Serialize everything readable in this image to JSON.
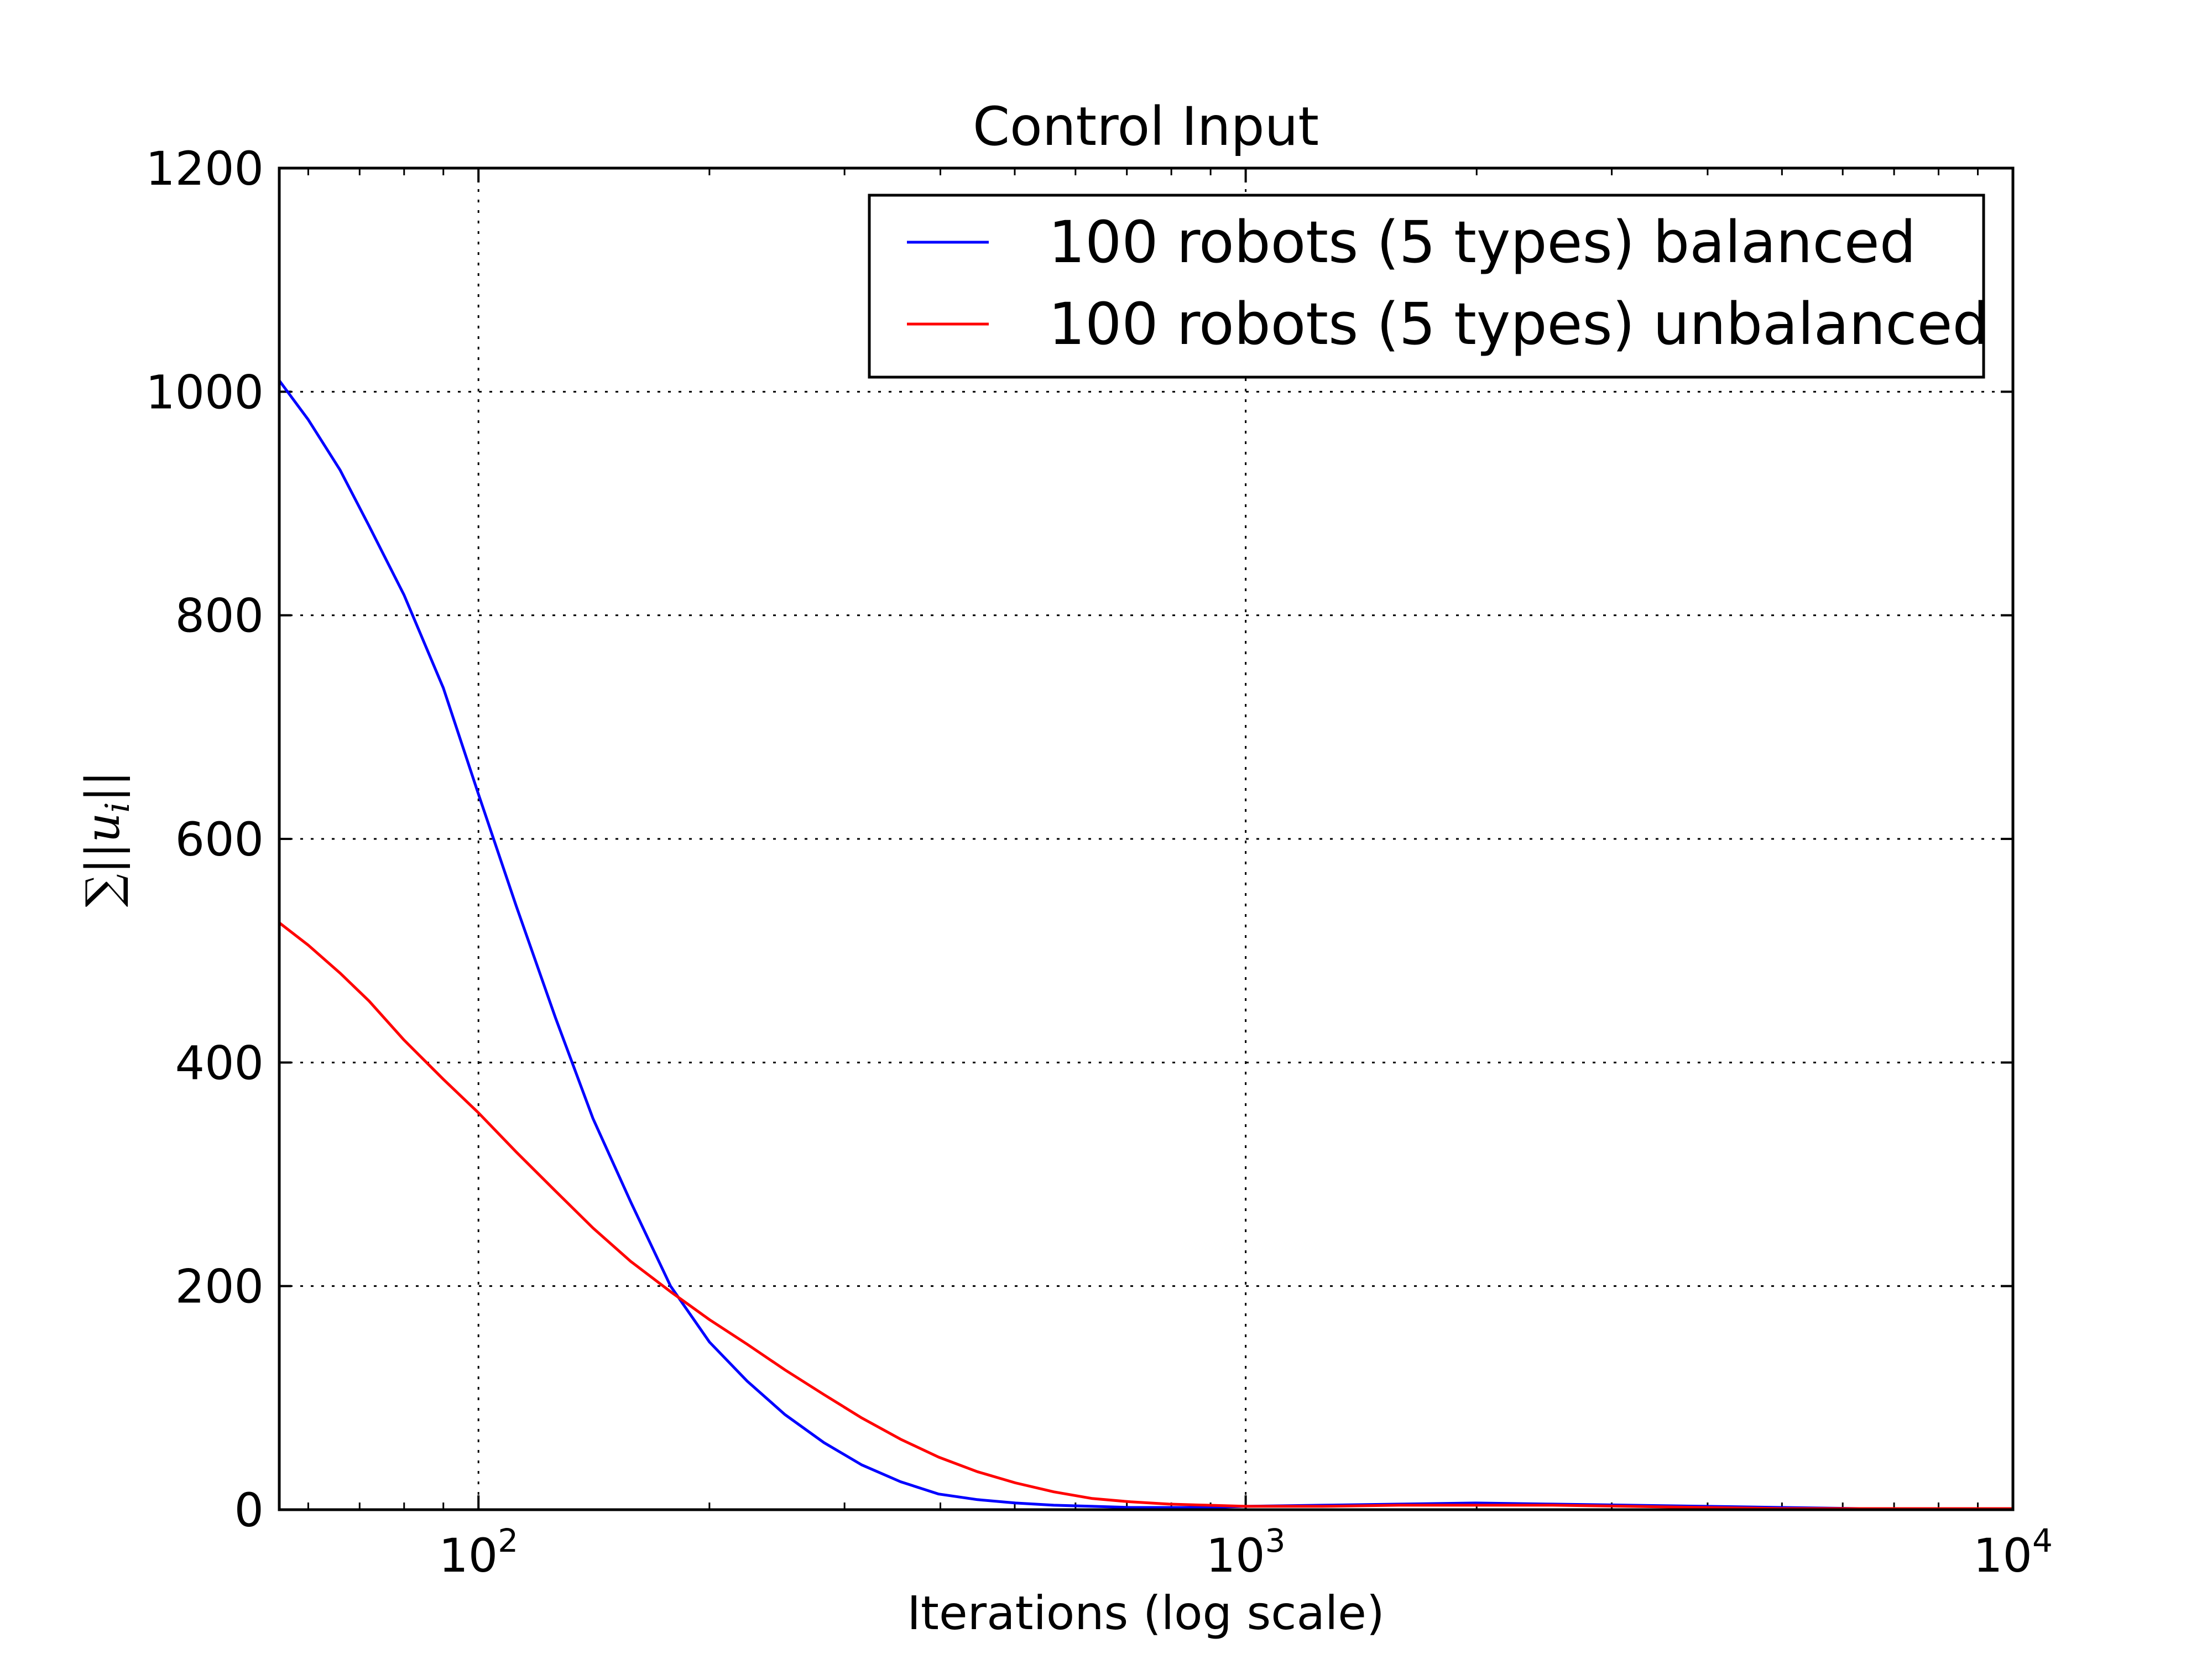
{
  "chart_data": {
    "type": "line",
    "title": "Control Input",
    "xlabel": "Iterations (log scale)",
    "ylabel": "∑||u_i||",
    "x_scale": "log",
    "xlim": [
      55,
      10000
    ],
    "ylim": [
      0,
      1200
    ],
    "y_ticks": [
      0,
      200,
      400,
      600,
      800,
      1000,
      1200
    ],
    "x_ticks": [
      100,
      1000,
      10000
    ],
    "x_tick_labels": [
      {
        "base": "10",
        "exp": "2"
      },
      {
        "base": "10",
        "exp": "3"
      },
      {
        "base": "10",
        "exp": "4"
      }
    ],
    "grid": true,
    "legend_position": "top-right",
    "series": [
      {
        "name": "100 robots (5 types) balanced",
        "color": "#0000ff",
        "x": [
          55,
          60,
          66,
          72,
          80,
          90,
          100,
          112,
          126,
          141,
          158,
          178,
          200,
          224,
          251,
          282,
          316,
          355,
          398,
          447,
          501,
          562,
          631,
          708,
          794,
          891,
          1000,
          1259,
          1585,
          1995,
          2512,
          3162,
          3981,
          5012,
          6310,
          7943,
          10000
        ],
        "y": [
          1010,
          975,
          930,
          880,
          818,
          735,
          640,
          540,
          440,
          350,
          275,
          200,
          150,
          115,
          85,
          60,
          40,
          25,
          14,
          9,
          6,
          4,
          3,
          2,
          2,
          2,
          3,
          4,
          5,
          6,
          5,
          4,
          3,
          2,
          1,
          1,
          1
        ]
      },
      {
        "name": "100 robots (5 types) unbalanced",
        "color": "#ff0000",
        "x": [
          55,
          60,
          66,
          72,
          80,
          90,
          100,
          112,
          126,
          141,
          158,
          178,
          200,
          224,
          251,
          282,
          316,
          355,
          398,
          447,
          501,
          562,
          631,
          708,
          794,
          891,
          1000,
          1259,
          1585,
          1995,
          2512,
          3162,
          3981,
          5012,
          6310,
          7943,
          10000
        ],
        "y": [
          525,
          505,
          480,
          455,
          420,
          385,
          355,
          320,
          285,
          252,
          222,
          195,
          170,
          148,
          125,
          103,
          82,
          63,
          47,
          34,
          24,
          16,
          10,
          7,
          5,
          4,
          3,
          3,
          4,
          4,
          4,
          3,
          2,
          1,
          1,
          1,
          1
        ]
      }
    ]
  }
}
